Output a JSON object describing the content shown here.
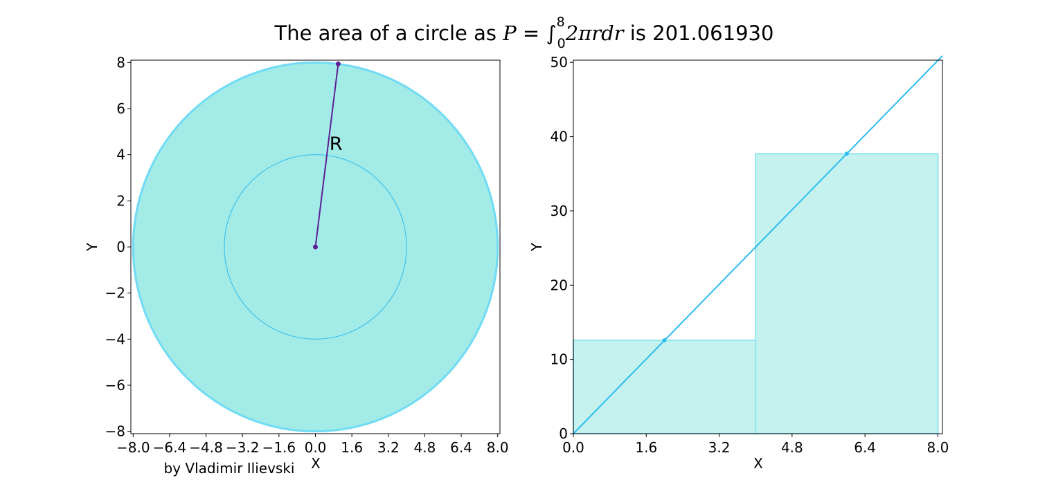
{
  "title": {
    "prefix": "The area of a circle as ",
    "var_p": "P",
    "equals": " = ",
    "integral": "∫",
    "upper": "8",
    "lower": "0",
    "integrand": "2πrdr",
    "suffix": " is 201.061930"
  },
  "credit": "by Vladimir Ilievski",
  "colors": {
    "circle_fill": "#a3ebe6",
    "circle_edge": "#6fdbf5",
    "inner_circle": "#2bbcf0",
    "radius_line": "#5b1f96",
    "line": "#2bbcf0",
    "bar_fill": "#c5f2ef",
    "bar_edge": "#8fe6f2"
  },
  "chart_data": [
    {
      "type": "scatter",
      "xlabel": "X",
      "ylabel": "Y",
      "xlim": [
        -8.1,
        8.1
      ],
      "ylim": [
        -8.1,
        8.1
      ],
      "xticks": [
        -8.0,
        -6.4,
        -4.8,
        -3.2,
        -1.6,
        0.0,
        1.6,
        3.2,
        4.8,
        6.4,
        8.0
      ],
      "xtick_labels": [
        "−8.0",
        "−6.4",
        "−4.8",
        "−3.2",
        "−1.6",
        "0.0",
        "1.6",
        "3.2",
        "4.8",
        "6.4",
        "8.0"
      ],
      "yticks": [
        -8,
        -6,
        -4,
        -2,
        0,
        2,
        4,
        6,
        8
      ],
      "ytick_labels": [
        "−8",
        "−6",
        "−4",
        "−2",
        "0",
        "2",
        "4",
        "6",
        "8"
      ],
      "outer_circle_radius": 8,
      "inner_circle_radius": 4,
      "radius_line": {
        "x": [
          0,
          1
        ],
        "y": [
          0,
          7.94
        ]
      },
      "radius_label": {
        "text": "R",
        "x": 0.9,
        "y": 4.2
      }
    },
    {
      "type": "bar",
      "xlabel": "X",
      "ylabel": "Y",
      "xlim": [
        0,
        8.1
      ],
      "ylim": [
        0,
        50.3
      ],
      "xticks": [
        0.0,
        1.6,
        3.2,
        4.8,
        6.4,
        8.0
      ],
      "xtick_labels": [
        "0.0",
        "1.6",
        "3.2",
        "4.8",
        "6.4",
        "8.0"
      ],
      "yticks": [
        0,
        10,
        20,
        30,
        40,
        50
      ],
      "ytick_labels": [
        "0",
        "10",
        "20",
        "30",
        "40",
        "50"
      ],
      "bars": [
        {
          "x0": 0,
          "x1": 4,
          "height": 12.57
        },
        {
          "x0": 4,
          "x1": 8,
          "height": 37.7
        }
      ],
      "line": {
        "x": [
          0,
          8.1
        ],
        "y": [
          0,
          50.89
        ]
      },
      "midpoints": {
        "x": [
          2,
          6
        ],
        "y": [
          12.57,
          37.7
        ]
      }
    }
  ]
}
